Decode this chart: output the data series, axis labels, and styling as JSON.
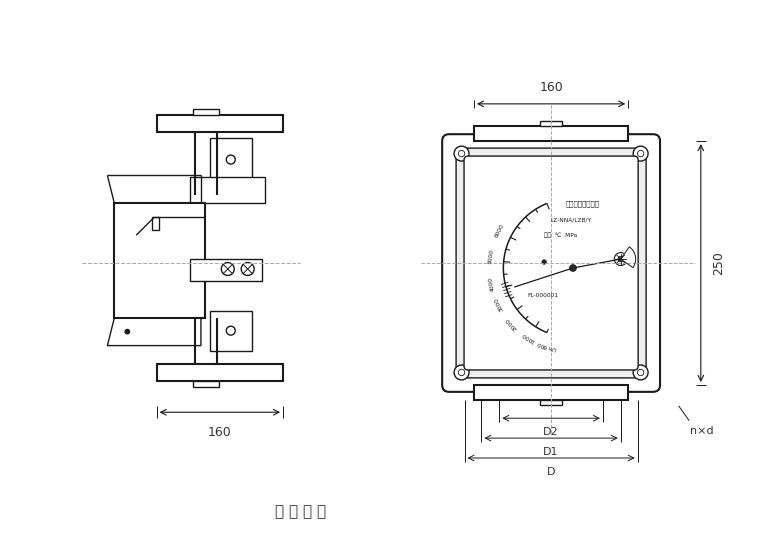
{
  "title": "安 装 尺 寸",
  "bg_color": "#ffffff",
  "line_color": "#1a1a1a",
  "dash_color": "#aaaaaa",
  "dim_color": "#333333",
  "fig_width": 7.57,
  "fig_height": 5.35,
  "dim_160_left": "160",
  "dim_160_top": "160",
  "dim_250_right": "250",
  "dim_D2": "D2",
  "dim_D1": "D1",
  "dim_D": "D",
  "dim_nxd": "n×d",
  "gauge_text1": "金属管浮子流量计",
  "gauge_text2": "LZ-NNA/LZB/Y",
  "gauge_text3": "介质  ℃  MPa",
  "gauge_text4": "FL-000001",
  "scale_vals": [
    "L/h",
    "600",
    "1000",
    "2000",
    "3000",
    "4000",
    "5000",
    "6000"
  ]
}
